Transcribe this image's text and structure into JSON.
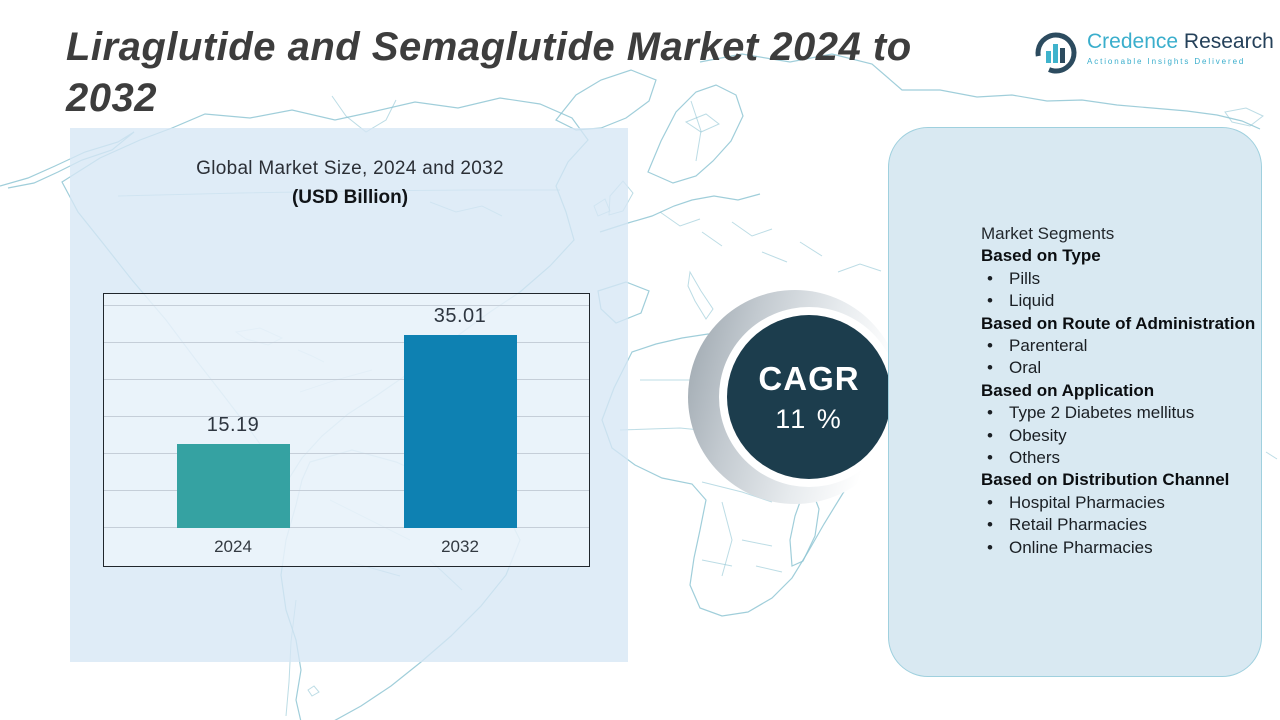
{
  "page": {
    "title_lines": [
      "Liraglutide and Semaglutide Market 2024 to",
      "2032"
    ]
  },
  "logo": {
    "brand_primary": "Credence",
    "brand_secondary": " Research",
    "tagline": "Actionable Insights Delivered"
  },
  "chart_data": {
    "type": "bar",
    "title": "Global Market Size, 2024 and 2032",
    "subtitle": "(USD Billion)",
    "categories": [
      "2024",
      "2032"
    ],
    "values": [
      15.19,
      35.01
    ],
    "value_labels": [
      "15.19",
      "35.01"
    ],
    "bar_colors": [
      "#35a2a2",
      "#0e81b2"
    ],
    "ylabel": "USD Billion",
    "ylim": [
      0,
      42
    ],
    "grid": true,
    "legend": "none"
  },
  "cagr": {
    "label": "CAGR",
    "value": "11 %",
    "badge_color": "#1c3d4d"
  },
  "segments_panel": {
    "items": [
      {
        "kind": "plain",
        "text": "Market Segments"
      },
      {
        "kind": "heading",
        "text": "Based on Type"
      },
      {
        "kind": "bullet",
        "text": "Pills"
      },
      {
        "kind": "bullet",
        "text": "Liquid"
      },
      {
        "kind": "heading",
        "text": "Based on Route of Administration"
      },
      {
        "kind": "bullet",
        "text": "Parenteral"
      },
      {
        "kind": "bullet",
        "text": "Oral"
      },
      {
        "kind": "heading",
        "text": "Based on Application"
      },
      {
        "kind": "bullet",
        "text": "Type 2 Diabetes mellitus"
      },
      {
        "kind": "bullet",
        "text": "Obesity"
      },
      {
        "kind": "bullet",
        "text": "Others"
      },
      {
        "kind": "heading",
        "text": "Based on Distribution Channel"
      },
      {
        "kind": "bullet",
        "text": "Hospital Pharmacies"
      },
      {
        "kind": "bullet",
        "text": "Retail Pharmacies"
      },
      {
        "kind": "bullet",
        "text": "Online Pharmacies"
      }
    ]
  },
  "colors": {
    "accent_teal": "#35a2a2",
    "accent_blue": "#0e81b2",
    "badge_navy": "#1c3d4d",
    "panel_blue": "#d9e9f2",
    "map_line": "#8fc5d4"
  }
}
